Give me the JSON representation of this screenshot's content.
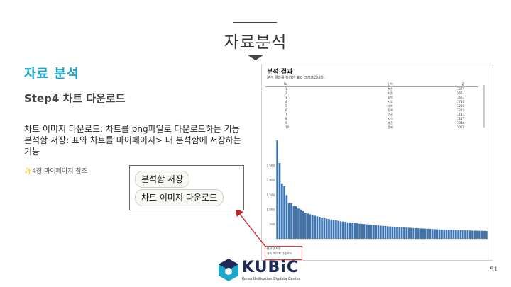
{
  "page": {
    "heading": "자료분석",
    "section_title": "자료 분석",
    "step_title": "Step4 차트 다운로드",
    "body_lines": [
      "차트 이미지 다운로드: 차트를 png파일로 다운로드하는 기능",
      "분석함 저장: 표와 차트를 마이페이지> 내 분석함에 저장하는",
      "기능"
    ],
    "note_icon": "sparkles-icon",
    "note": "4장 마이페이지 참조",
    "page_number": "51"
  },
  "callout": {
    "save_label": "분석함 저장",
    "download_label": "차트 이미지 다운로드"
  },
  "screenshot": {
    "title": "분석 결과",
    "subtitle": "분석 결과를 정리한 표와 그래프입니다.",
    "columns": [
      "No",
      "단어",
      "값"
    ],
    "rows": [
      [
        "1",
        "북한",
        "3377"
      ],
      [
        "2",
        "지원",
        "2601"
      ],
      [
        "3",
        "협력",
        "1601"
      ],
      [
        "4",
        "사업",
        "1734"
      ],
      [
        "5",
        "대북",
        "1230"
      ],
      [
        "6",
        "정책",
        "1225"
      ],
      [
        "7",
        "인권",
        "1131"
      ],
      [
        "8",
        "지식",
        "1117"
      ],
      [
        "9",
        "추진",
        "1040"
      ],
      [
        "10",
        "문제",
        "1003"
      ]
    ],
    "buttons": [
      "분석함 저장",
      "차트 이미지 다운로드"
    ]
  },
  "chart_data": {
    "type": "bar",
    "title": "",
    "xlabel": "",
    "ylabel": "",
    "ylim": [
      0,
      3500
    ],
    "yticks": [
      "500",
      "1,000",
      "1,500",
      "2,000",
      "2,500"
    ],
    "values": [
      3377,
      2601,
      1900,
      1800,
      1500,
      1230,
      1225,
      1131,
      1117,
      1040,
      1003,
      950,
      900,
      870,
      840,
      810,
      790,
      770,
      750,
      730,
      710,
      690,
      675,
      660,
      645,
      630,
      615,
      600,
      590,
      580,
      570,
      560,
      550,
      540,
      530,
      520,
      512,
      504,
      496,
      488,
      480,
      472,
      465,
      458,
      451,
      444,
      437,
      430,
      424,
      418,
      412,
      406,
      400,
      395,
      390,
      385,
      380,
      375,
      370,
      365,
      360,
      356,
      352,
      348,
      344,
      340,
      336,
      332,
      328,
      324,
      320,
      317,
      314,
      311,
      308,
      305,
      302,
      299,
      296,
      293,
      290,
      287,
      284,
      282,
      280,
      278,
      276,
      274,
      272,
      270
    ],
    "bar_color": "#3d74b0"
  },
  "logo": {
    "word": "KUBiC",
    "sub": "Korea Unification Bigdata Center",
    "accent": "#1aa7c9"
  }
}
